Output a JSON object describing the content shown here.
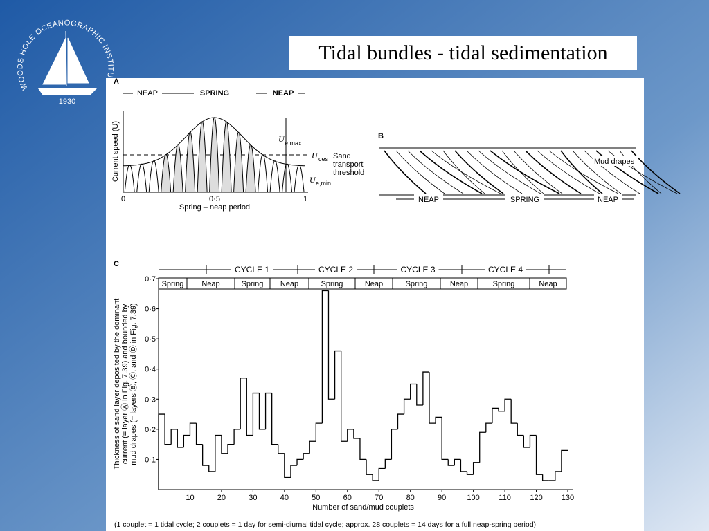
{
  "slide": {
    "title": "Tidal bundles - tidal sedimentation",
    "logo": {
      "name": "WOODS HOLE OCEANOGRAPHIC INSTITUTION",
      "year": "1930"
    }
  },
  "figure": {
    "panel_a": {
      "label": "A",
      "phases": [
        "NEAP",
        "SPRING",
        "NEAP"
      ],
      "ylabel": "Current speed (U)",
      "u_max": "U",
      "u_max_sub": "e,max",
      "u_ces": "U",
      "u_ces_sub": "ces",
      "threshold": [
        "Sand",
        "transport",
        "threshold"
      ],
      "u_min": "U",
      "u_min_sub": "e,min",
      "ticks": [
        "0",
        "0·5",
        "1"
      ],
      "xlabel": "Spring – neap period"
    },
    "panel_b": {
      "label": "B",
      "annotation": "Mud drapes",
      "phases": [
        "NEAP",
        "SPRING",
        "NEAP"
      ]
    },
    "footnote": "(1 couplet = 1 tidal cycle; 2 couplets = 1 day for semi-diurnal tidal cycle; approx. 28 couplets = 14 days for a full neap-spring period)"
  },
  "chart_data": {
    "type": "histogram",
    "panel": "C",
    "cycles": [
      "CYCLE 1",
      "CYCLE 2",
      "CYCLE 3",
      "CYCLE 4"
    ],
    "phases": [
      "Spring",
      "Neap",
      "Spring",
      "Neap",
      "Spring",
      "Neap",
      "Spring",
      "Neap",
      "Spring",
      "Neap"
    ],
    "xlabel": "Number of sand/mud couplets",
    "ylabel": [
      "Thickness of sand layer deposited by the dominant",
      "current (= layer Ⓐ in Fig. 7.39) and bounded by",
      "mud drapes (= layers Ⓑ, Ⓒ, and Ⓓ in Fig. 7.39)"
    ],
    "bins": [
      0,
      2,
      4,
      6,
      8,
      10,
      12,
      14,
      16,
      18,
      20,
      22,
      24,
      26,
      28,
      30,
      32,
      34,
      36,
      38,
      40,
      42,
      44,
      46,
      48,
      50,
      52,
      54,
      56,
      58,
      60,
      62,
      64,
      66,
      68,
      70,
      72,
      74,
      76,
      78,
      80,
      82,
      84,
      86,
      88,
      90,
      92,
      94,
      96,
      98,
      100,
      102,
      104,
      106,
      108,
      110,
      112,
      114,
      116,
      118,
      120,
      122,
      124,
      126,
      128,
      130
    ],
    "values": [
      0.25,
      0.15,
      0.2,
      0.14,
      0.18,
      0.22,
      0.15,
      0.08,
      0.06,
      0.18,
      0.12,
      0.15,
      0.2,
      0.37,
      0.18,
      0.32,
      0.2,
      0.32,
      0.15,
      0.12,
      0.04,
      0.08,
      0.1,
      0.12,
      0.16,
      0.22,
      0.66,
      0.3,
      0.46,
      0.16,
      0.2,
      0.17,
      0.1,
      0.05,
      0.03,
      0.07,
      0.1,
      0.2,
      0.25,
      0.3,
      0.35,
      0.28,
      0.39,
      0.22,
      0.24,
      0.1,
      0.08,
      0.1,
      0.06,
      0.05,
      0.09,
      0.19,
      0.22,
      0.27,
      0.26,
      0.3,
      0.22,
      0.18,
      0.14,
      0.18,
      0.05,
      0.03,
      0.03,
      0.06,
      0.13
    ],
    "color": "#000000",
    "xlim": [
      0,
      130
    ],
    "ylim": [
      0,
      0.7
    ],
    "xticks": [
      10,
      20,
      30,
      40,
      50,
      60,
      70,
      80,
      90,
      100,
      110,
      120,
      130
    ],
    "yticks": [
      {
        "value": 0.1,
        "label": "0·1"
      },
      {
        "value": 0.2,
        "label": "0·2"
      },
      {
        "value": 0.3,
        "label": "0·3"
      },
      {
        "value": 0.4,
        "label": "0·4"
      },
      {
        "value": 0.5,
        "label": "0·5"
      },
      {
        "value": 0.6,
        "label": "0·6"
      },
      {
        "value": 0.7,
        "label": "0·7"
      }
    ]
  }
}
